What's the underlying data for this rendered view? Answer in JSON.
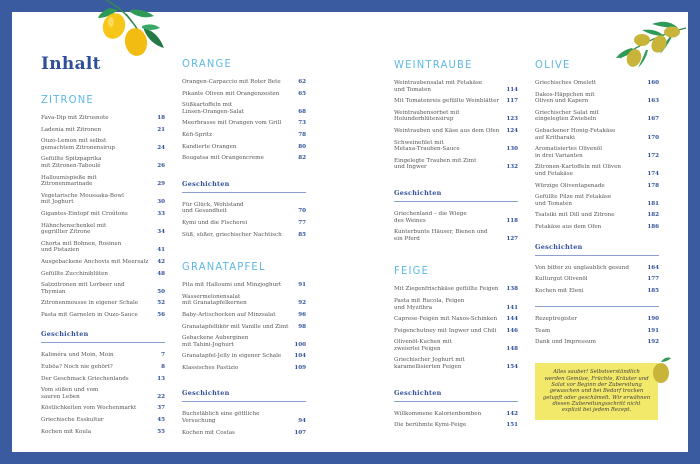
{
  "title": "Inhalt",
  "colors": {
    "border": "#3a5ba0",
    "category": "#5cb9e6",
    "accent": "#2f4f9a",
    "note_bg": "#f2e86a"
  },
  "columns": [
    {
      "sections": [
        {
          "type": "category",
          "heading": "ZITRONE",
          "items": [
            {
              "t": "Fava-Dip mit Zitrusnote",
              "p": "18"
            },
            {
              "t": "Ladenia mit Zitronen",
              "p": "21"
            },
            {
              "t": "Ouzo-Lemon mit selbst\ngemachtem Zitronensirup",
              "p": "24"
            },
            {
              "t": "Gefüllte Spitzpaprika\nmit Zitronen-Taboulé",
              "p": "26"
            },
            {
              "t": "Halloumispieße mit Zitronenmarinade",
              "p": "29"
            },
            {
              "t": "Vegetarische Moussaka-Bowl\nmit Joghurt",
              "p": "30"
            },
            {
              "t": "Gigantes-Eintopf mit Croûtons",
              "p": "33"
            },
            {
              "t": "Hähnchenschenkel mit\ngegrillter Zitrone",
              "p": "34"
            },
            {
              "t": "Chorta mit Bohnen, Rosinen\nund Pistazien",
              "p": "41"
            },
            {
              "t": "Ausgebackene Anchovis mit Meersalz",
              "p": "42"
            },
            {
              "t": "Gefüllte Zucchiniblüten",
              "p": "48"
            },
            {
              "t": "Salzzitronen mit Lorbeer und Thymian",
              "p": "50"
            },
            {
              "t": "Zitronenmousse in eigener Schale",
              "p": "52"
            },
            {
              "t": "Pasta mit Garnelen in Ouzo-Sauce",
              "p": "56"
            }
          ]
        },
        {
          "type": "stories",
          "heading": "Geschichten",
          "items": [
            {
              "t": "Kaliméra und Moin, Moin",
              "p": "7"
            },
            {
              "t": "Euböa? Noch nie gehört?",
              "p": "8"
            },
            {
              "t": "Der Geschmack Griechenlands",
              "p": "13"
            },
            {
              "t": "Vom süßen und vom\nsauren Leben",
              "p": "22"
            },
            {
              "t": "Köstlichkeiten vom Wochenmarkt",
              "p": "37"
            },
            {
              "t": "Griechische Esskultur",
              "p": "45"
            },
            {
              "t": "Kochen mit Koula",
              "p": "55"
            }
          ]
        }
      ]
    },
    {
      "sections": [
        {
          "type": "category",
          "heading": "ORANGE",
          "items": [
            {
              "t": "Orangen-Carpaccio mit Roter Bete",
              "p": "62"
            },
            {
              "t": "Pikante Oliven mit Orangenzesten",
              "p": "65"
            },
            {
              "t": "Süßkartoffeln mit\nLinsen-Orangen-Salat",
              "p": "68"
            },
            {
              "t": "Meerbrasse mit Orangen vom Grill",
              "p": "73"
            },
            {
              "t": "Kéfi-Spritz",
              "p": "78"
            },
            {
              "t": "Kandierte Orangen",
              "p": "80"
            },
            {
              "t": "Bougatsa mit Orangencreme",
              "p": "82"
            }
          ]
        },
        {
          "type": "stories",
          "heading": "Geschichten",
          "items": [
            {
              "t": "Für Glück, Wohlstand\nund Gesundheit",
              "p": "70"
            },
            {
              "t": "Kymi und die Fischerei",
              "p": "77"
            },
            {
              "t": "Süß, süßer, griechischer Nachtisch",
              "p": "85"
            }
          ]
        },
        {
          "type": "category",
          "heading": "GRANATAPFEL",
          "items": [
            {
              "t": "Pita mit Halloumi und Minzjoghurt",
              "p": "91"
            },
            {
              "t": "Wassermelonensalat\nmit Granatapfelkernen",
              "p": "92"
            },
            {
              "t": "Baby-Artischocken auf Minzsalat",
              "p": "96"
            },
            {
              "t": "Granatapfellikör mit Vanille und Zimt",
              "p": "98"
            },
            {
              "t": "Gebackene Auberginen\nmit Tahini-Joghurt",
              "p": "100"
            },
            {
              "t": "Granatapfel-Jelly in eigener Schale",
              "p": "104"
            },
            {
              "t": "Klassisches Pastizio",
              "p": "109"
            }
          ]
        },
        {
          "type": "stories",
          "heading": "Geschichten",
          "items": [
            {
              "t": "Buchstäblich eine göttliche Versuchung",
              "p": "94"
            },
            {
              "t": "Kochen mit Costas",
              "p": "107"
            }
          ]
        }
      ]
    },
    {
      "sections": [
        {
          "type": "category",
          "heading": "WEINTRAUBE",
          "items": [
            {
              "t": "Weintraubensalat mit Fetakäse\nund Tomaten",
              "p": "114"
            },
            {
              "t": "Mit Tomatenreis gefüllte Weinblätter",
              "p": "117"
            },
            {
              "t": "Weintraubensorbet mit\nHolunderblütensirup",
              "p": "123"
            },
            {
              "t": "Weintrauben und Käse aus dem Ofen",
              "p": "124"
            },
            {
              "t": "Schweinefilet mit\nMetaxa-Trauben-Sauce",
              "p": "130"
            },
            {
              "t": "Eingelegte Trauben mit Zimt\nund Ingwer",
              "p": "132"
            }
          ]
        },
        {
          "type": "stories",
          "heading": "Geschichten",
          "items": [
            {
              "t": "Griechenland – die Wiege\ndes Weines",
              "p": "118"
            },
            {
              "t": "Kunterbunte Häuser, Bienen und\nein Pferd",
              "p": "127"
            }
          ]
        },
        {
          "type": "category",
          "heading": "FEIGE",
          "items": [
            {
              "t": "Mit Ziegenfrischkäse gefüllte Feigen",
              "p": "138"
            },
            {
              "t": "Pasta mit Rucola, Feigen\nund Myzithra",
              "p": "141"
            },
            {
              "t": "Caprese-Feigen mit Naxos-Schinken",
              "p": "144"
            },
            {
              "t": "Feigenchutney mit Ingwer und Chili",
              "p": "146"
            },
            {
              "t": "Olivenöl-Kuchen mit\nzweierlei Feigen",
              "p": "148"
            },
            {
              "t": "Griechischer Joghurt mit\nkaramellisierten Feigen",
              "p": "154"
            }
          ]
        },
        {
          "type": "stories",
          "heading": "Geschichten",
          "items": [
            {
              "t": "Willkommene Kalorienbomben",
              "p": "142"
            },
            {
              "t": "Die berühmte Kymi-Feige",
              "p": "151"
            }
          ]
        }
      ]
    },
    {
      "sections": [
        {
          "type": "category",
          "heading": "OLIVE",
          "items": [
            {
              "t": "Griechisches Omelett",
              "p": "160"
            },
            {
              "t": "Dakos-Häppchen mit\nOliven und Kapern",
              "p": "163"
            },
            {
              "t": "Griechischer Salat mit\neingelegten Zwiebeln",
              "p": "167"
            },
            {
              "t": "Gebackener Honig-Fetakäse\nauf Kritharaki",
              "p": "170"
            },
            {
              "t": "Aromatisiertes Olivenöl\nin drei Varianten",
              "p": "172"
            },
            {
              "t": "Zitronen-Kartoffeln mit Oliven\nund Fetakäse",
              "p": "174"
            },
            {
              "t": "Würzige Oliventapenade",
              "p": "178"
            },
            {
              "t": "Gefüllte Pilze mit Fetakäse\nund Tomaten",
              "p": "181"
            },
            {
              "t": "Tsatsiki mit Dill und Zitrone",
              "p": "182"
            },
            {
              "t": "Fetakäse aus dem Ofen",
              "p": "186"
            }
          ]
        },
        {
          "type": "stories",
          "heading": "Geschichten",
          "items": [
            {
              "t": "Von bitter zu unglaublich gesund",
              "p": "164"
            },
            {
              "t": "Kulturgut Olivenöl",
              "p": "177"
            },
            {
              "t": "Kochen mit Eleni",
              "p": "185"
            }
          ]
        },
        {
          "type": "plain",
          "heading": "",
          "items": [
            {
              "t": "Rezeptregister",
              "p": "190"
            },
            {
              "t": "Team",
              "p": "191"
            },
            {
              "t": "Dank und Impressum",
              "p": "192"
            }
          ]
        }
      ]
    }
  ],
  "note": "Alles sauber! Selbstverständlich werden Gemüse, Früchte, Kräuter und Salat vor Beginn der Zubereitung gewaschen und bei Bedarf trocken getupft oder geschämelt. Wir erwähnen diesen Zubereitungsschritt nicht explizit bei jedem Rezept.",
  "icons": [
    "lemon-branch-icon",
    "olive-branch-icon",
    "olive-icon"
  ]
}
